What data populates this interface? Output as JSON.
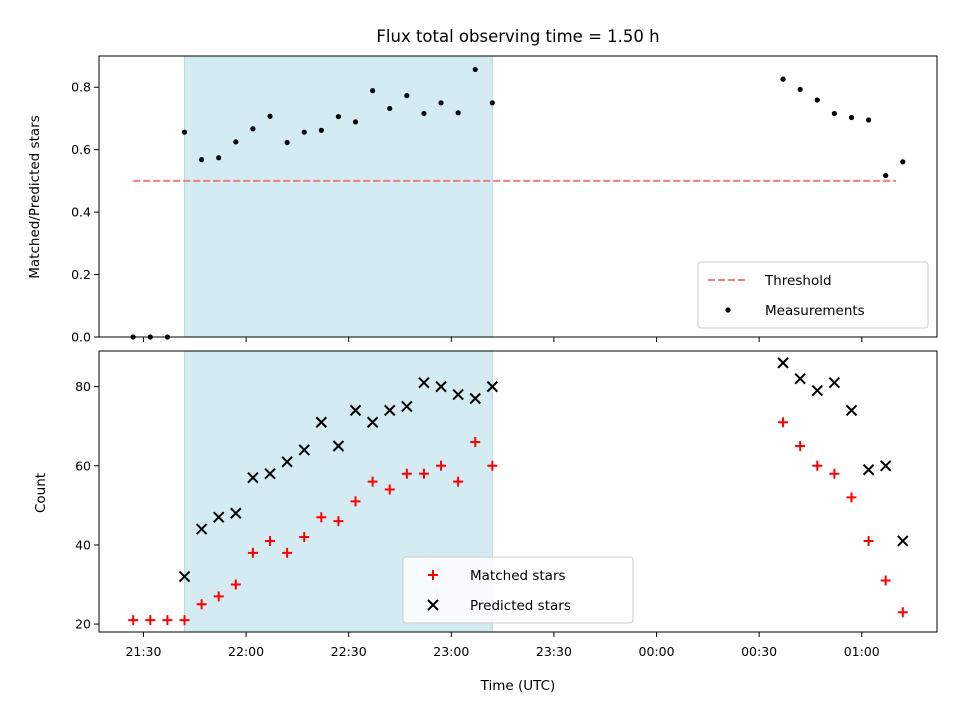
{
  "chart_data": [
    {
      "type": "scatter",
      "title": "Flux total observing time = 1.50 h",
      "xlabel": "",
      "ylabel": "Matched/Predicted stars",
      "ylim": [
        0,
        0.9
      ],
      "yticks": [
        0.0,
        0.2,
        0.4,
        0.6,
        0.8
      ],
      "ytick_labels": [
        "0.0",
        "0.2",
        "0.4",
        "0.6",
        "0.8"
      ],
      "xlim": [
        "21:17",
        "01:22"
      ],
      "xticks": [
        "21:30",
        "22:00",
        "22:30",
        "23:00",
        "23:30",
        "00:00",
        "00:30",
        "01:00"
      ],
      "shaded_interval": [
        "21:42",
        "23:12"
      ],
      "shaded_color": "#d4ebf2",
      "legend_position": "lower right",
      "series": [
        {
          "name": "Threshold",
          "kind": "dashed-line",
          "color": "#f08080",
          "x": [
            "21:27",
            "01:10"
          ],
          "y": [
            0.5,
            0.5
          ]
        },
        {
          "name": "Measurements",
          "kind": "dot",
          "color": "#000000",
          "x": [
            "21:27",
            "21:32",
            "21:37",
            "21:42",
            "21:47",
            "21:52",
            "21:57",
            "22:02",
            "22:07",
            "22:12",
            "22:17",
            "22:22",
            "22:27",
            "22:32",
            "22:37",
            "22:42",
            "22:47",
            "22:52",
            "22:57",
            "23:02",
            "23:07",
            "23:12",
            "00:37",
            "00:42",
            "00:47",
            "00:52",
            "00:57",
            "01:02",
            "01:07",
            "01:12"
          ],
          "y": [
            0.0,
            0.0,
            0.0,
            0.656,
            0.568,
            0.574,
            0.625,
            0.667,
            0.707,
            0.623,
            0.656,
            0.662,
            0.706,
            0.689,
            0.789,
            0.732,
            0.773,
            0.716,
            0.75,
            0.718,
            0.857,
            0.75,
            0.826,
            0.793,
            0.759,
            0.716,
            0.703,
            0.695,
            0.517,
            0.561
          ]
        }
      ]
    },
    {
      "type": "scatter",
      "title": "",
      "xlabel": "Time (UTC)",
      "ylabel": "Count",
      "ylim": [
        18,
        89
      ],
      "yticks": [
        20,
        40,
        60,
        80
      ],
      "ytick_labels": [
        "20",
        "40",
        "60",
        "80"
      ],
      "xlim": [
        "21:17",
        "01:22"
      ],
      "xticks": [
        "21:30",
        "22:00",
        "22:30",
        "23:00",
        "23:30",
        "00:00",
        "00:30",
        "01:00"
      ],
      "xtick_labels": [
        "21:30",
        "22:00",
        "22:30",
        "23:00",
        "23:30",
        "00:00",
        "00:30",
        "01:00"
      ],
      "shaded_interval": [
        "21:42",
        "23:12"
      ],
      "shaded_color": "#d4ebf2",
      "legend_position": "lower center",
      "series": [
        {
          "name": "Matched stars",
          "kind": "plus",
          "color": "#ff0000",
          "x": [
            "21:27",
            "21:32",
            "21:37",
            "21:42",
            "21:47",
            "21:52",
            "21:57",
            "22:02",
            "22:07",
            "22:12",
            "22:17",
            "22:22",
            "22:27",
            "22:32",
            "22:37",
            "22:42",
            "22:47",
            "22:52",
            "22:57",
            "23:02",
            "23:07",
            "23:12",
            "00:37",
            "00:42",
            "00:47",
            "00:52",
            "00:57",
            "01:02",
            "01:07",
            "01:12"
          ],
          "y": [
            21,
            21,
            21,
            21,
            25,
            27,
            30,
            38,
            41,
            38,
            42,
            47,
            46,
            51,
            56,
            54,
            58,
            58,
            60,
            56,
            66,
            60,
            71,
            65,
            60,
            58,
            52,
            41,
            31,
            23
          ]
        },
        {
          "name": "Predicted stars",
          "kind": "x",
          "color": "#000000",
          "x": [
            "21:42",
            "21:47",
            "21:52",
            "21:57",
            "22:02",
            "22:07",
            "22:12",
            "22:17",
            "22:22",
            "22:27",
            "22:32",
            "22:37",
            "22:42",
            "22:47",
            "22:52",
            "22:57",
            "23:02",
            "23:07",
            "23:12",
            "00:37",
            "00:42",
            "00:47",
            "00:52",
            "00:57",
            "01:02",
            "01:07",
            "01:12"
          ],
          "y": [
            32,
            44,
            47,
            48,
            57,
            58,
            61,
            64,
            71,
            65,
            74,
            71,
            74,
            75,
            81,
            80,
            78,
            77,
            80,
            86,
            82,
            79,
            81,
            74,
            59,
            60,
            41
          ]
        }
      ]
    }
  ]
}
